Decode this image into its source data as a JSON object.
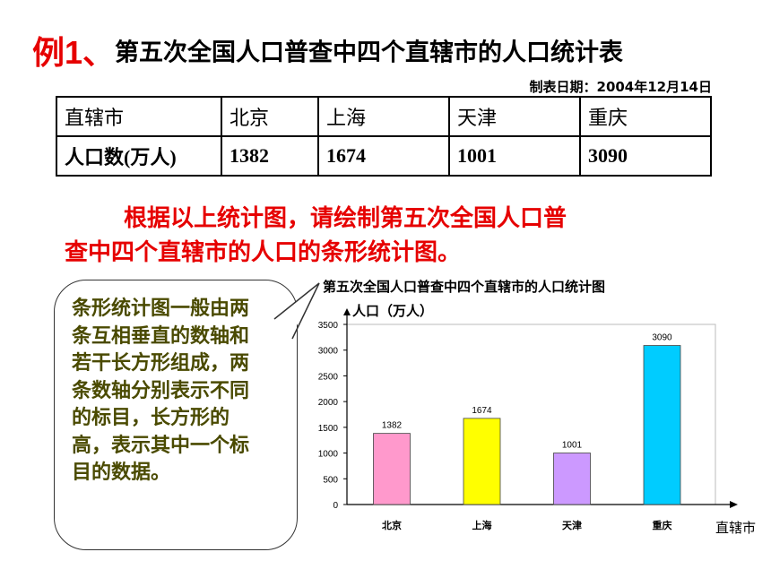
{
  "heading": {
    "label": "例1、",
    "title": "第五次全国人口普查中四个直辖市的人口统计表"
  },
  "date": "制表日期：2004年12月14日",
  "table": {
    "row_header": "直辖市",
    "value_header": "人口数(万人)",
    "cities": [
      "北京",
      "上海",
      "天津",
      "重庆"
    ],
    "values": [
      "1382",
      "1674",
      "1001",
      "3090"
    ]
  },
  "instruction": {
    "line1": "根据以上统计图，请绘制第五次全国人口普",
    "line2": "查中四个直辖市的人口的条形统计图。"
  },
  "note": "条形统计图一般由两条互相垂直的数轴和若干长方形组成，两条数轴分别表示不同的标目，长方形的高，表示其中一个标目的数据。",
  "chart_data": {
    "type": "bar",
    "title": "第五次全国人口普查中四个直辖市的人口统计图",
    "ylabel": "人口（万人）",
    "xlabel": "直辖市",
    "categories": [
      "北京",
      "上海",
      "天津",
      "重庆"
    ],
    "values": [
      1382,
      1674,
      1001,
      3090
    ],
    "value_labels": [
      "1382",
      "1674",
      "1001",
      "3090"
    ],
    "colors": [
      "#ff99cc",
      "#ffff00",
      "#cc99ff",
      "#00ccff"
    ],
    "ylim": [
      0,
      3500
    ],
    "yticks": [
      0,
      500,
      1000,
      1500,
      2000,
      2500,
      3000,
      3500
    ],
    "grid": false
  }
}
